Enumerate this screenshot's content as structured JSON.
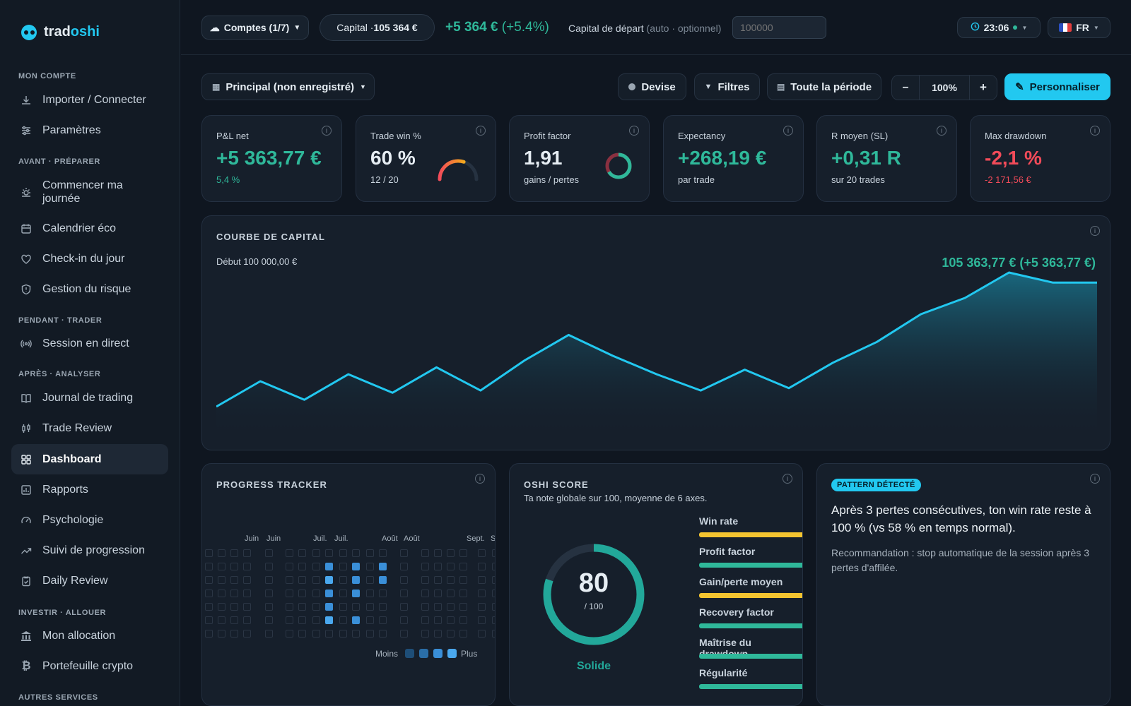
{
  "app": {
    "brand_a": "trad",
    "brand_b": "oshi"
  },
  "sidebar": {
    "sections": [
      "MON COMPTE",
      "AVANT · PRÉPARER",
      "PENDANT · TRADER",
      "APRÈS · ANALYSER",
      "INVESTIR · ALLOUER",
      "AUTRES SERVICES"
    ],
    "items": [
      {
        "label": "Importer / Connecter",
        "icon": "download-icon"
      },
      {
        "label": "Paramètres",
        "icon": "sliders-icon"
      },
      {
        "label": "Commencer ma journée",
        "icon": "sun-icon"
      },
      {
        "label": "Calendrier éco",
        "icon": "calendar-icon"
      },
      {
        "label": "Check-in du jour",
        "icon": "heart-icon"
      },
      {
        "label": "Gestion du risque",
        "icon": "shield-icon"
      },
      {
        "label": "Session en direct",
        "icon": "broadcast-icon"
      },
      {
        "label": "Journal de trading",
        "icon": "book-icon"
      },
      {
        "label": "Trade Review",
        "icon": "candles-icon"
      },
      {
        "label": "Dashboard",
        "icon": "grid-icon"
      },
      {
        "label": "Rapports",
        "icon": "report-icon"
      },
      {
        "label": "Psychologie",
        "icon": "gauge-icon"
      },
      {
        "label": "Suivi de progression",
        "icon": "trend-icon"
      },
      {
        "label": "Daily Review",
        "icon": "checklist-icon"
      },
      {
        "label": "Mon allocation",
        "icon": "bank-icon"
      },
      {
        "label": "Portefeuille crypto",
        "icon": "bitcoin-icon"
      }
    ]
  },
  "topbar": {
    "accounts": "Comptes (1/7)",
    "capital_label": "Capital · ",
    "capital_value": "105 364 €",
    "gain": "+5 364 €",
    "gain_pct": "(+5.4%)",
    "start_label": "Capital de départ",
    "start_hint": "(auto · optionnel)",
    "start_placeholder": "100000",
    "time": "23:06",
    "lang": "FR"
  },
  "toolbar": {
    "workspace": "Principal (non enregistré)",
    "devise": "Devise",
    "filtres": "Filtres",
    "periode": "Toute la période",
    "zoom": "100%",
    "minus": "–",
    "plus": "+",
    "customize": "Personnaliser"
  },
  "kpis": [
    {
      "label": "P&L net",
      "value": "+5 363,77 €",
      "sub": "5,4 %"
    },
    {
      "label": "Trade win %",
      "value": "60 %",
      "sub": "12 / 20",
      "gauge_fraction": 0.6
    },
    {
      "label": "Profit factor",
      "value": "1,91",
      "sub": "gains / pertes",
      "ring_fraction": 0.66
    },
    {
      "label": "Expectancy",
      "value": "+268,19 €",
      "sub": "par trade"
    },
    {
      "label": "R moyen (SL)",
      "value": "+0,31 R",
      "sub": "sur 20 trades"
    },
    {
      "label": "Max drawdown",
      "value": "-2,1 %",
      "sub": "-2 171,56 €"
    }
  ],
  "equity": {
    "title": "COURBE DE CAPITAL",
    "start": "Début 100 000,00 €",
    "end": "105 363,77 € (+5 363,77 €)"
  },
  "chart_data": {
    "type": "area",
    "title": "COURBE DE CAPITAL",
    "x": [
      1,
      2,
      3,
      4,
      5,
      6,
      7,
      8,
      9,
      10,
      11,
      12,
      13,
      14,
      15,
      16,
      17,
      18,
      19,
      20,
      21
    ],
    "values": [
      100000,
      101100,
      100300,
      101400,
      100600,
      101700,
      100700,
      102000,
      103100,
      102200,
      101400,
      100700,
      101600,
      100800,
      101900,
      102800,
      104000,
      104700,
      105800,
      105364,
      105364
    ],
    "accent": "#22c8f0"
  },
  "progress": {
    "title": "PROGRESS TRACKER",
    "months": [
      "Juin",
      "Juin",
      "Juil.",
      "Juil.",
      "Août",
      "Août",
      "Sept.",
      "S"
    ],
    "less": "Moins",
    "more": "Plus"
  },
  "oshi": {
    "title": "OSHI SCORE",
    "subtitle": "Ta note globale sur 100, moyenne de 6 axes.",
    "score": "80",
    "max": "/ 100",
    "grade": "Solide",
    "score_fraction": 0.8,
    "axes": [
      {
        "name": "Win rate",
        "color": "#f4c430"
      },
      {
        "name": "Profit factor",
        "color": "#2fb89a"
      },
      {
        "name": "Gain/perte moyen",
        "color": "#f4c430"
      },
      {
        "name": "Recovery factor",
        "color": "#2fb89a"
      },
      {
        "name": "Maîtrise du drawdown",
        "color": "#2fb89a"
      },
      {
        "name": "Régularité",
        "color": "#2fb89a"
      }
    ]
  },
  "pattern": {
    "badge": "PATTERN DÉTECTÉ",
    "text": "Après 3 pertes consécutives, ton win rate reste à 100 % (vs 58 % en temps normal).",
    "reco": "Recommandation : stop automatique de la session après 3 pertes d'affilée."
  }
}
